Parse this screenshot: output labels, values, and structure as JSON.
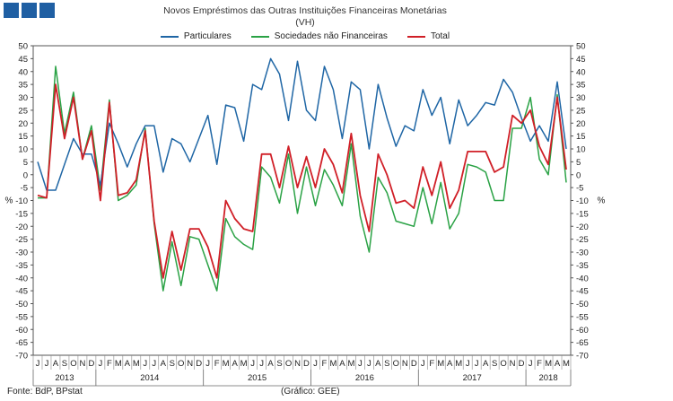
{
  "title": "Novos Empréstimos das Outras Instituições Financeiras Monetárias",
  "subtitle": "(VH)",
  "footer": {
    "source": "Fonte: BdP, BPstat",
    "credit": "(Gráfico: GEE)"
  },
  "chart_data": {
    "type": "line",
    "ylabel_left": "%",
    "ylabel_right": "%",
    "ylim": [
      -70,
      50
    ],
    "yticks": [
      50,
      45,
      40,
      35,
      30,
      25,
      20,
      15,
      10,
      5,
      0,
      -5,
      -10,
      -15,
      -20,
      -25,
      -30,
      -35,
      -40,
      -45,
      -50,
      -55,
      -60,
      -65,
      -70
    ],
    "legend_position": "top-center",
    "grid": false,
    "months": [
      "J",
      "J",
      "A",
      "S",
      "O",
      "N",
      "D",
      "J",
      "F",
      "M",
      "A",
      "M",
      "J",
      "J",
      "A",
      "S",
      "O",
      "N",
      "D",
      "J",
      "F",
      "M",
      "A",
      "M",
      "J",
      "J",
      "A",
      "S",
      "O",
      "N",
      "D",
      "J",
      "F",
      "M",
      "A",
      "M",
      "J",
      "J",
      "A",
      "S",
      "O",
      "N",
      "D",
      "J",
      "F",
      "M",
      "A",
      "M",
      "J",
      "J",
      "A",
      "S",
      "O",
      "N",
      "D",
      "J",
      "F",
      "M",
      "A",
      "M"
    ],
    "years": [
      {
        "label": "2013",
        "start": 0,
        "count": 7
      },
      {
        "label": "2014",
        "start": 7,
        "count": 12
      },
      {
        "label": "2015",
        "start": 19,
        "count": 12
      },
      {
        "label": "2016",
        "start": 31,
        "count": 12
      },
      {
        "label": "2017",
        "start": 43,
        "count": 12
      },
      {
        "label": "2018",
        "start": 55,
        "count": 5
      }
    ],
    "series": [
      {
        "name": "Particulares",
        "color": "#1f66a5",
        "values": [
          5,
          -6,
          -6,
          4,
          14,
          8,
          8,
          -4,
          20,
          12,
          3,
          12,
          19,
          19,
          1,
          14,
          12,
          5,
          14,
          23,
          4,
          27,
          26,
          13,
          35,
          33,
          45,
          39,
          21,
          44,
          25,
          21,
          42,
          33,
          14,
          36,
          33,
          10,
          35,
          22,
          11,
          19,
          17,
          33,
          23,
          30,
          12,
          29,
          19,
          23,
          28,
          27,
          37,
          32,
          22,
          13,
          19,
          13,
          36,
          10
        ]
      },
      {
        "name": "Sociedades não Financeiras",
        "color": "#2aa245",
        "values": [
          -9,
          -9,
          42,
          16,
          32,
          6,
          19,
          -6,
          29,
          -10,
          -8,
          -4,
          18,
          -19,
          -45,
          -26,
          -43,
          -24,
          -25,
          -35,
          -45,
          -17,
          -24,
          -27,
          -29,
          3,
          -1,
          -11,
          8,
          -15,
          3,
          -12,
          2,
          -4,
          -12,
          12,
          -16,
          -30,
          -1,
          -7,
          -18,
          -19,
          -20,
          -5,
          -19,
          -3,
          -21,
          -15,
          4,
          3,
          1,
          -10,
          -10,
          18,
          18,
          30,
          6,
          0,
          31,
          -3
        ]
      },
      {
        "name": "Total",
        "color": "#d01f27",
        "values": [
          -8,
          -9,
          35,
          14,
          30,
          6,
          17,
          -10,
          28,
          -8,
          -7,
          -2,
          17,
          -18,
          -40,
          -22,
          -37,
          -21,
          -21,
          -28,
          -40,
          -10,
          -17,
          -21,
          -22,
          8,
          8,
          -5,
          11,
          -5,
          7,
          -5,
          10,
          4,
          -7,
          16,
          -8,
          -22,
          8,
          0,
          -11,
          -10,
          -13,
          3,
          -8,
          5,
          -13,
          -6,
          9,
          9,
          9,
          1,
          3,
          23,
          20,
          25,
          11,
          4,
          30,
          2
        ]
      }
    ]
  }
}
